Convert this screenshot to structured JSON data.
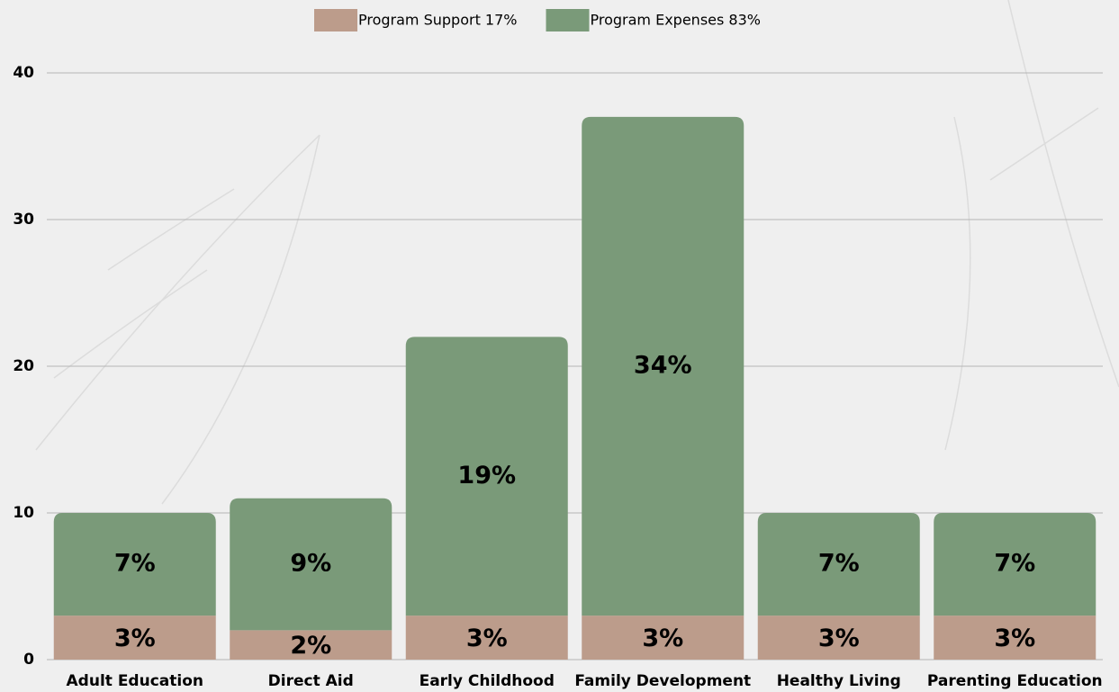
{
  "chart_data": {
    "type": "stacked-bar",
    "categories": [
      "Adult Education",
      "Direct Aid",
      "Early Childhood",
      "Family Development",
      "Healthy Living",
      "Parenting Education"
    ],
    "series": [
      {
        "name": "Program Support 17%",
        "color": "#bc9c8b",
        "values": [
          3,
          2,
          3,
          3,
          3,
          3
        ],
        "value_labels": [
          "3%",
          "2%",
          "3%",
          "3%",
          "3%",
          "3%"
        ]
      },
      {
        "name": "Program Expenses 83%",
        "color": "#7a9a79",
        "values": [
          7,
          9,
          19,
          34,
          7,
          7
        ],
        "value_labels": [
          "7%",
          "9%",
          "19%",
          "34%",
          "7%",
          "7%"
        ]
      }
    ],
    "ylim": [
      0,
      40
    ],
    "yticks": [
      0,
      10,
      20,
      30,
      40
    ],
    "grid": true,
    "legend": "top"
  }
}
